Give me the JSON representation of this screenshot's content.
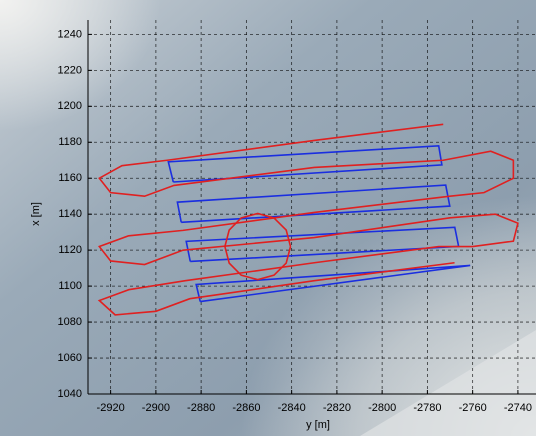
{
  "chart_data": {
    "type": "line",
    "xlabel": "y [m]",
    "ylabel": "x [m]",
    "xlim": [
      -2930,
      -2732
    ],
    "ylim": [
      1040,
      1248
    ],
    "xticks": [
      -2920,
      -2900,
      -2880,
      -2860,
      -2840,
      -2820,
      -2800,
      -2780,
      -2760,
      -2740
    ],
    "yticks": [
      1040,
      1060,
      1080,
      1100,
      1120,
      1140,
      1160,
      1180,
      1200,
      1220,
      1240
    ],
    "grid": true,
    "series": [
      {
        "color": "#1a2ee0",
        "x": [
          -2892.3,
          -2894.5,
          -2775,
          -2773.6,
          -2892.3
        ],
        "values": [
          1157.9,
          1169.1,
          1178,
          1167.4,
          1157.9
        ]
      },
      {
        "color": "#1a2ee0",
        "x": [
          -2888.8,
          -2890.5,
          -2771.9,
          -2770.1,
          -2888.8
        ],
        "values": [
          1135.5,
          1146.7,
          1156.2,
          1144.5,
          1135.5
        ]
      },
      {
        "color": "#1a2ee0",
        "x": [
          -2884.8,
          -2886.6,
          -2767.9,
          -2766.2,
          -2884.8
        ],
        "values": [
          1113.7,
          1124.9,
          1132.7,
          1122.1,
          1113.7
        ]
      },
      {
        "color": "#1a2ee0",
        "x": [
          -2880.4,
          -2882.2,
          -2761.1,
          -2880.4
        ],
        "values": [
          1091.4,
          1100.9,
          1111.5,
          1091.4
        ]
      },
      {
        "color": "#e02020",
        "x": [
          -2773,
          -2830,
          -2895,
          -2915,
          -2925,
          -2920,
          -2905,
          -2892,
          -2830,
          -2773,
          -2752,
          -2742,
          -2742,
          -2755,
          -2770,
          -2830,
          -2888,
          -2912,
          -2925,
          -2920,
          -2905,
          -2888,
          -2830,
          -2770,
          -2750,
          -2740,
          -2742,
          -2760,
          -2775,
          -2830,
          -2887,
          -2912,
          -2925,
          -2918,
          -2900,
          -2885,
          -2830,
          -2768
        ],
        "values": [
          1190,
          1181,
          1170,
          1167,
          1160,
          1152,
          1150,
          1156,
          1166,
          1170,
          1175,
          1170,
          1160,
          1152,
          1150,
          1141,
          1131,
          1128,
          1122,
          1114,
          1112,
          1120,
          1127,
          1138,
          1140,
          1135,
          1125,
          1122,
          1122,
          1113,
          1103,
          1098,
          1092,
          1084,
          1086,
          1093,
          1103,
          1113
        ]
      },
      {
        "color": "#e02020",
        "x": [
          -2840.5,
          -2842.4,
          -2847.8,
          -2855,
          -2862.3,
          -2867.6,
          -2869.5,
          -2867.6,
          -2862.3,
          -2855,
          -2847.8,
          -2842.4,
          -2840.5
        ],
        "values": [
          1122,
          1131.2,
          1137.9,
          1140.4,
          1137.9,
          1131.2,
          1122,
          1112.8,
          1106.1,
          1103.6,
          1106.1,
          1112.8,
          1122
        ]
      }
    ]
  }
}
